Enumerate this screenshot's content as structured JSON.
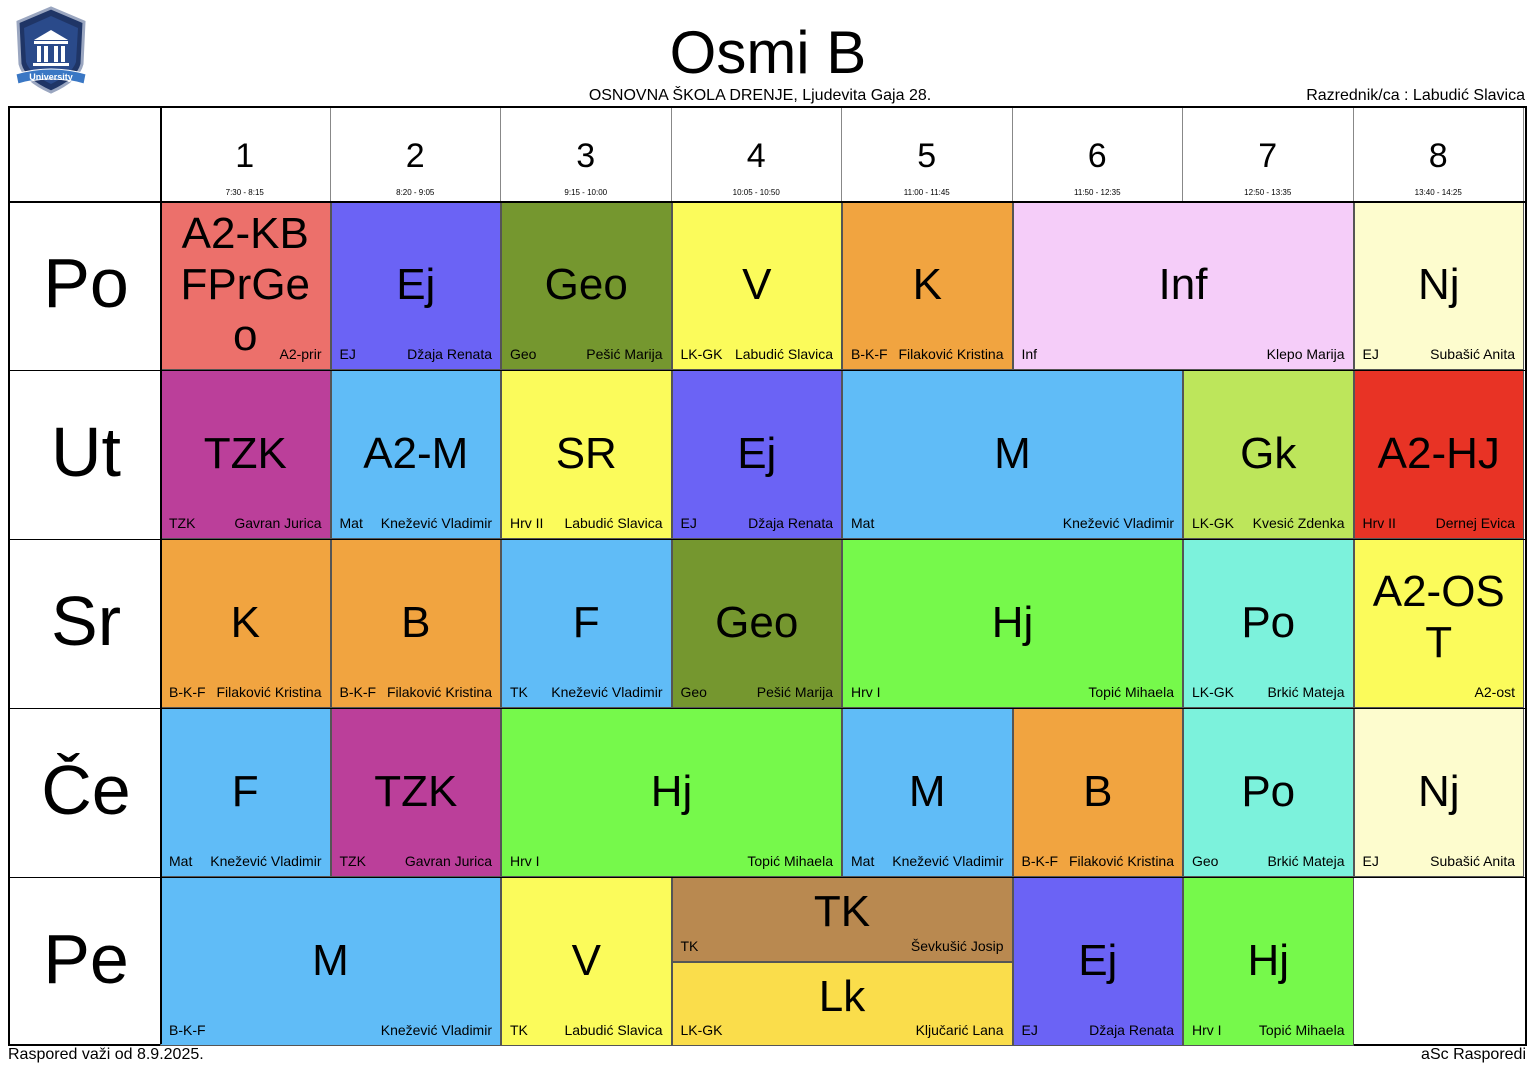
{
  "header": {
    "title": "Osmi B",
    "school": "OSNOVNA ŠKOLA  DRENJE, Ljudevita Gaja 28.",
    "class_teacher": "Razrednik/ca : Labudić Slavica",
    "logo_text": "University"
  },
  "periods": [
    {
      "num": "1",
      "time": "7:30 - 8:15"
    },
    {
      "num": "2",
      "time": "8:20 - 9:05"
    },
    {
      "num": "3",
      "time": "9:15 - 10:00"
    },
    {
      "num": "4",
      "time": "10:05 - 10:50"
    },
    {
      "num": "5",
      "time": "11:00 - 11:45"
    },
    {
      "num": "6",
      "time": "11:50 - 12:35"
    },
    {
      "num": "7",
      "time": "12:50 - 13:35"
    },
    {
      "num": "8",
      "time": "13:40 - 14:25"
    }
  ],
  "days": [
    "Po",
    "Ut",
    "Sr",
    "Če",
    "Pe"
  ],
  "lessons": [
    {
      "day": 0,
      "period": 1,
      "span": 1,
      "subject": "A2-KB FPrGe o",
      "left": "",
      "right": "A2-prir",
      "color": "#ec706b"
    },
    {
      "day": 0,
      "period": 2,
      "span": 1,
      "subject": "Ej",
      "left": "EJ",
      "right": "Džaja Renata",
      "color": "#6b63f5"
    },
    {
      "day": 0,
      "period": 3,
      "span": 1,
      "subject": "Geo",
      "left": "Geo",
      "right": "Pešić Marija",
      "color": "#75972f"
    },
    {
      "day": 0,
      "period": 4,
      "span": 1,
      "subject": "V",
      "left": "LK-GK",
      "right": "Labudić Slavica",
      "color": "#fbfb5b"
    },
    {
      "day": 0,
      "period": 5,
      "span": 1,
      "subject": "K",
      "left": "B-K-F",
      "right": "Filaković Kristina",
      "color": "#f1a440"
    },
    {
      "day": 0,
      "period": 6,
      "span": 2,
      "subject": "Inf",
      "left": "Inf",
      "right": "Klepo Marija",
      "color": "#f5cdf9"
    },
    {
      "day": 0,
      "period": 8,
      "span": 1,
      "subject": "Nj",
      "left": "EJ",
      "right": "Subašić Anita",
      "color": "#fdfcce"
    },
    {
      "day": 1,
      "period": 1,
      "span": 1,
      "subject": "TZK",
      "left": "TZK",
      "right": "Gavran Jurica",
      "color": "#bb3f9a"
    },
    {
      "day": 1,
      "period": 2,
      "span": 1,
      "subject": "A2-M",
      "left": "Mat",
      "right": "Knežević Vladimir",
      "color": "#60bcf7"
    },
    {
      "day": 1,
      "period": 3,
      "span": 1,
      "subject": "SR",
      "left": "Hrv II",
      "right": "Labudić Slavica",
      "color": "#fbfb5b"
    },
    {
      "day": 1,
      "period": 4,
      "span": 1,
      "subject": "Ej",
      "left": "EJ",
      "right": "Džaja Renata",
      "color": "#6b63f5"
    },
    {
      "day": 1,
      "period": 5,
      "span": 2,
      "subject": "M",
      "left": "Mat",
      "right": "Knežević Vladimir",
      "color": "#60bcf7"
    },
    {
      "day": 1,
      "period": 7,
      "span": 1,
      "subject": "Gk",
      "left": "LK-GK",
      "right": "Kvesić Zdenka",
      "color": "#bde65b"
    },
    {
      "day": 1,
      "period": 8,
      "span": 1,
      "subject": "A2-HJ",
      "left": "Hrv II",
      "right": "Dernej Evica",
      "color": "#e83325"
    },
    {
      "day": 2,
      "period": 1,
      "span": 1,
      "subject": "K",
      "left": "B-K-F",
      "right": "Filaković Kristina",
      "color": "#f1a440"
    },
    {
      "day": 2,
      "period": 2,
      "span": 1,
      "subject": "B",
      "left": "B-K-F",
      "right": "Filaković Kristina",
      "color": "#f1a440"
    },
    {
      "day": 2,
      "period": 3,
      "span": 1,
      "subject": "F",
      "left": "TK",
      "right": "Knežević Vladimir",
      "color": "#60bcf7"
    },
    {
      "day": 2,
      "period": 4,
      "span": 1,
      "subject": "Geo",
      "left": "Geo",
      "right": "Pešić Marija",
      "color": "#75972f"
    },
    {
      "day": 2,
      "period": 5,
      "span": 2,
      "subject": "Hj",
      "left": "Hrv I",
      "right": "Topić Mihaela",
      "color": "#76f94b"
    },
    {
      "day": 2,
      "period": 7,
      "span": 1,
      "subject": "Po",
      "left": "LK-GK",
      "right": "Brkić Mateja",
      "color": "#7cf2dc"
    },
    {
      "day": 2,
      "period": 8,
      "span": 1,
      "subject": "A2-OS T",
      "left": "",
      "right": "A2-ost",
      "color": "#fbfb5b"
    },
    {
      "day": 3,
      "period": 1,
      "span": 1,
      "subject": "F",
      "left": "Mat",
      "right": "Knežević Vladimir",
      "color": "#60bcf7"
    },
    {
      "day": 3,
      "period": 2,
      "span": 1,
      "subject": "TZK",
      "left": "TZK",
      "right": "Gavran Jurica",
      "color": "#bb3f9a"
    },
    {
      "day": 3,
      "period": 3,
      "span": 2,
      "subject": "Hj",
      "left": "Hrv I",
      "right": "Topić Mihaela",
      "color": "#76f94b"
    },
    {
      "day": 3,
      "period": 5,
      "span": 1,
      "subject": "M",
      "left": "Mat",
      "right": "Knežević Vladimir",
      "color": "#60bcf7"
    },
    {
      "day": 3,
      "period": 6,
      "span": 1,
      "subject": "B",
      "left": "B-K-F",
      "right": "Filaković Kristina",
      "color": "#f1a440"
    },
    {
      "day": 3,
      "period": 7,
      "span": 1,
      "subject": "Po",
      "left": "Geo",
      "right": "Brkić Mateja",
      "color": "#7cf2dc"
    },
    {
      "day": 3,
      "period": 8,
      "span": 1,
      "subject": "Nj",
      "left": "EJ",
      "right": "Subašić Anita",
      "color": "#fdfcce"
    },
    {
      "day": 4,
      "period": 1,
      "span": 2,
      "subject": "M",
      "left": "B-K-F",
      "right": "Knežević Vladimir",
      "color": "#60bcf7"
    },
    {
      "day": 4,
      "period": 3,
      "span": 1,
      "subject": "V",
      "left": "TK",
      "right": "Labudić Slavica",
      "color": "#fbfb5b"
    },
    {
      "day": 4,
      "period": 4,
      "span": 2,
      "half": "top",
      "subject": "TK",
      "left": "TK",
      "right": "Ševkušić Josip",
      "color": "#b98950"
    },
    {
      "day": 4,
      "period": 4,
      "span": 2,
      "half": "bottom",
      "subject": "Lk",
      "left": "LK-GK",
      "right": "Ključarić Lana",
      "color": "#fadd4b"
    },
    {
      "day": 4,
      "period": 6,
      "span": 1,
      "subject": "Ej",
      "left": "EJ",
      "right": "Džaja Renata",
      "color": "#6b63f5"
    },
    {
      "day": 4,
      "period": 7,
      "span": 1,
      "subject": "Hj",
      "left": "Hrv I",
      "right": "Topić Mihaela",
      "color": "#76f94b"
    }
  ],
  "footer": {
    "valid_from": "Raspored važi od 8.9.2025.",
    "software": "aSc Rasporedi"
  }
}
